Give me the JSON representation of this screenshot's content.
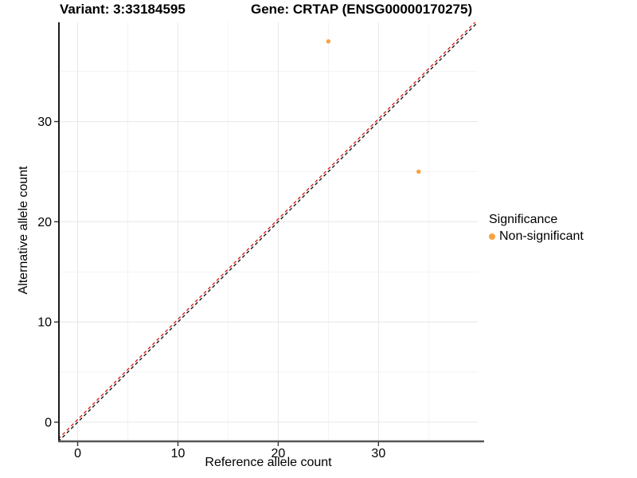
{
  "chart_data": {
    "type": "scatter",
    "title_variant": "Variant: 3:33184595",
    "title_gene": "Gene: CRTAP (ENSG00000170275)",
    "xlabel": "Reference allele count",
    "ylabel": "Alternative allele count",
    "xlim": [
      -1.79,
      39.9
    ],
    "ylim": [
      -1.83,
      39.9
    ],
    "x_ticks": [
      0,
      10,
      20,
      30
    ],
    "y_ticks": [
      0,
      10,
      20,
      30
    ],
    "x_minor_ticks": [
      5,
      15,
      25,
      35
    ],
    "y_minor_ticks": [
      5,
      15,
      25,
      35
    ],
    "grid": true,
    "points": [
      {
        "x": 25,
        "y": 38,
        "series": "Non-significant"
      },
      {
        "x": 34,
        "y": 25,
        "series": "Non-significant"
      }
    ],
    "lines": [
      {
        "name": "identity-line",
        "slope": 1,
        "intercept": 0,
        "style": "dashed",
        "color": "#1A1A1A"
      },
      {
        "name": "fit-line",
        "slope": 1,
        "intercept": 0.27,
        "style": "dashed",
        "color": "#E02020"
      }
    ],
    "legend": {
      "position": "right",
      "title": "Significance",
      "items": [
        {
          "label": "Non-significant",
          "color": "#F9A242"
        }
      ]
    },
    "colors": {
      "point": "#F9A242",
      "grid_major": "#E9E9E9",
      "grid_minor": "#F2F2F2",
      "axis_line_left": "#000000",
      "axis_line_bottom": "#555555",
      "tick_mark": "#333333",
      "text": "#000000"
    }
  }
}
